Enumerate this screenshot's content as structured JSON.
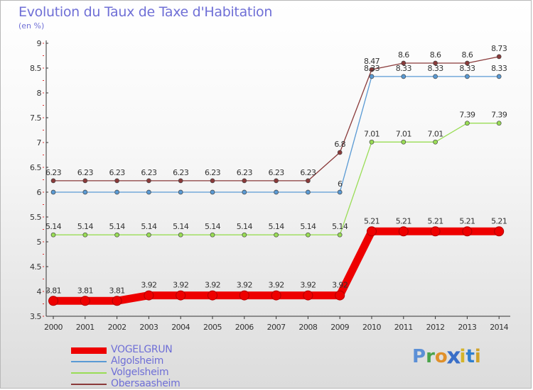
{
  "title": "Evolution du Taux de Taxe d'Habitation",
  "subtitle": "(en %)",
  "logo": {
    "text": "Proxiti",
    "letters": [
      "P",
      "r",
      "o",
      "x",
      "i",
      "t",
      "i"
    ],
    "colors": [
      "#5b8fd6",
      "#4aa34a",
      "#e0902a",
      "#3a6fc8",
      "#d4b42a",
      "#2f7fd0",
      "#d0a22a"
    ]
  },
  "chart_data": {
    "type": "line",
    "title": "Evolution du Taux de Taxe d'Habitation",
    "ylabel": "(en %)",
    "xlabel": "",
    "x": [
      "2000",
      "2001",
      "2002",
      "2003",
      "2004",
      "2005",
      "2006",
      "2007",
      "2008",
      "2009",
      "2010",
      "2011",
      "2012",
      "2013",
      "2014"
    ],
    "ylim": [
      3.5,
      9
    ],
    "yticks": [
      "3.5",
      "4",
      "4.5",
      "5",
      "5.5",
      "6",
      "6.5",
      "7",
      "7.5",
      "8",
      "8.5",
      "9"
    ],
    "grid": false,
    "legend_position": "bottom-left",
    "series": [
      {
        "name": "VOGELGRUN",
        "color": "#ee0000",
        "values": [
          3.81,
          3.81,
          3.81,
          3.92,
          3.92,
          3.92,
          3.92,
          3.92,
          3.92,
          3.92,
          5.21,
          5.21,
          5.21,
          5.21,
          5.21
        ],
        "labels": [
          "3.81",
          "3.81",
          "3.81",
          "3.92",
          "3.92",
          "3.92",
          "3.92",
          "3.92",
          "3.92",
          "3.92",
          "5.21",
          "5.21",
          "5.21",
          "5.21",
          "5.21"
        ]
      },
      {
        "name": "Algolsheim",
        "color": "#5a9ad4",
        "values": [
          6,
          6,
          6,
          6,
          6,
          6,
          6,
          6,
          6,
          6,
          8.33,
          8.33,
          8.33,
          8.33,
          8.33
        ],
        "labels": [
          "",
          "",
          "",
          "",
          "",
          "",
          "",
          "",
          "",
          "6",
          "8.33",
          "8.33",
          "8.33",
          "8.33",
          "8.33"
        ]
      },
      {
        "name": "Volgelsheim",
        "color": "#99dd55",
        "values": [
          5.14,
          5.14,
          5.14,
          5.14,
          5.14,
          5.14,
          5.14,
          5.14,
          5.14,
          5.14,
          7.01,
          7.01,
          7.01,
          7.39,
          7.39
        ],
        "labels": [
          "5.14",
          "5.14",
          "5.14",
          "5.14",
          "5.14",
          "5.14",
          "5.14",
          "5.14",
          "5.14",
          "5.14",
          "7.01",
          "7.01",
          "7.01",
          "7.39",
          "7.39"
        ]
      },
      {
        "name": "Obersaasheim",
        "color": "#8a3a3a",
        "values": [
          6.23,
          6.23,
          6.23,
          6.23,
          6.23,
          6.23,
          6.23,
          6.23,
          6.23,
          6.8,
          8.47,
          8.6,
          8.6,
          8.6,
          8.73
        ],
        "labels": [
          "6.23",
          "6.23",
          "6.23",
          "6.23",
          "6.23",
          "6.23",
          "6.23",
          "6.23",
          "6.23",
          "6.8",
          "8.47",
          "8.6",
          "8.6",
          "8.6",
          "8.73"
        ]
      }
    ]
  }
}
